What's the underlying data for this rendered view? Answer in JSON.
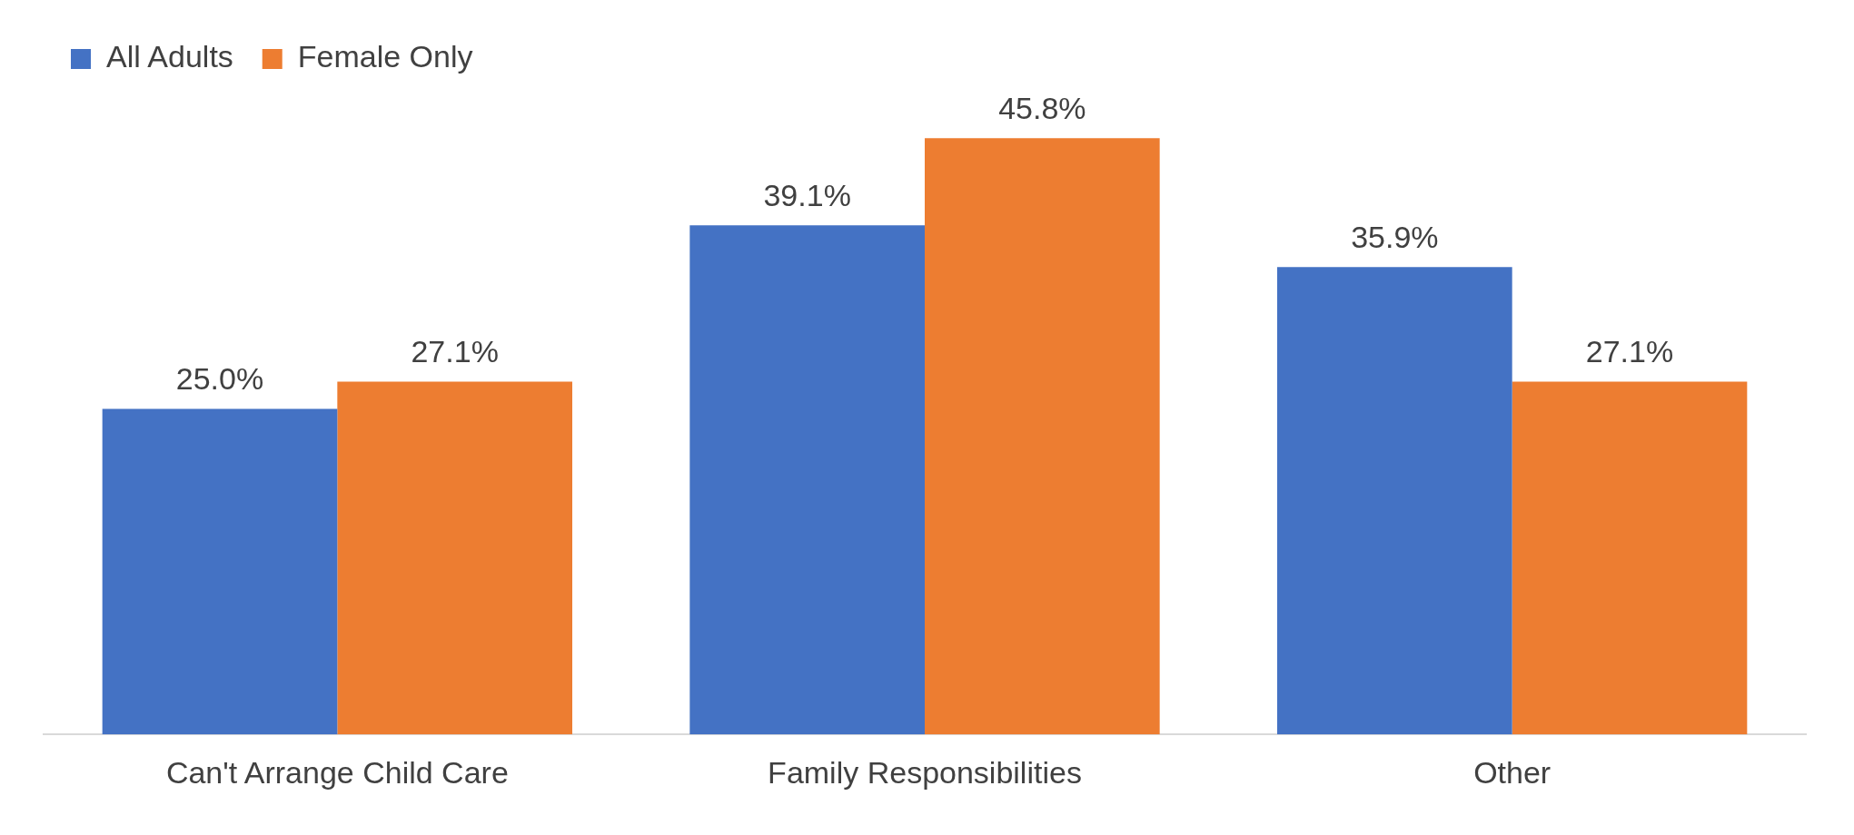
{
  "chart_data": {
    "type": "bar",
    "categories": [
      "Can't Arrange Child Care",
      "Family Responsibilities",
      "Other"
    ],
    "series": [
      {
        "name": "All Adults",
        "color": "#4472c4",
        "values": [
          25.0,
          39.1,
          35.9
        ],
        "value_labels": [
          "25.0%",
          "39.1%",
          "35.9%"
        ]
      },
      {
        "name": "Female Only",
        "color": "#ed7d31",
        "values": [
          27.1,
          45.8,
          27.1
        ],
        "value_labels": [
          "27.1%",
          "45.8%",
          "27.1%"
        ]
      }
    ],
    "grid": false,
    "legend": "top left",
    "tick_labels": "x"
  }
}
